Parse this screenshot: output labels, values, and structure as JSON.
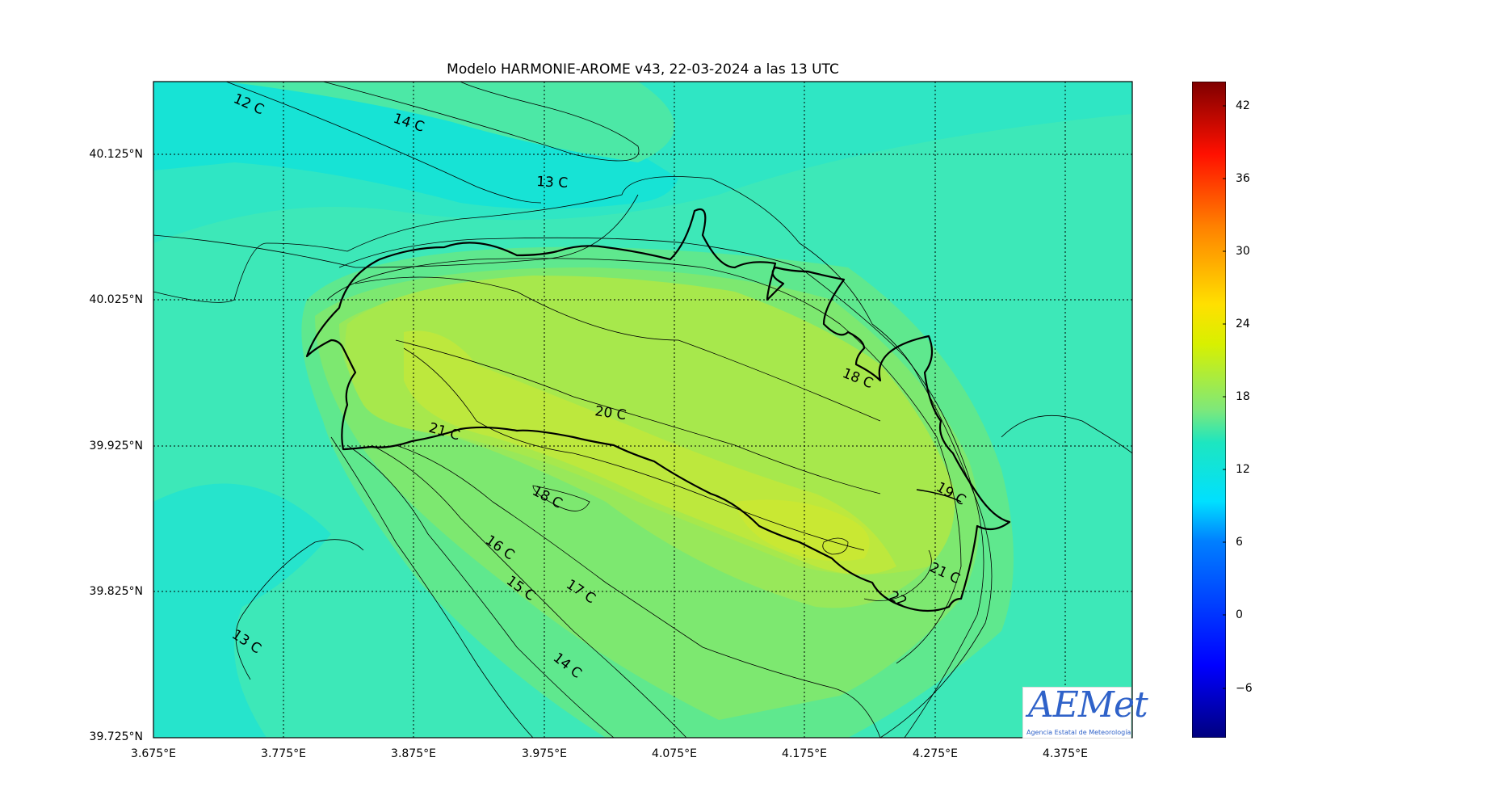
{
  "title": "Modelo HARMONIE-AROME v43, 22-03-2024 a las 13 UTC",
  "lat_ticks": [
    "40.125°N",
    "40.025°N",
    "39.925°N",
    "39.825°N",
    "39.725°N"
  ],
  "lon_ticks": [
    "3.675°E",
    "3.775°E",
    "3.875°E",
    "3.975°E",
    "4.075°E",
    "4.175°E",
    "4.275°E",
    "4.375°E"
  ],
  "colorbar": {
    "ticks": [
      "42",
      "36",
      "30",
      "24",
      "18",
      "12",
      "6",
      "0",
      "−6"
    ],
    "range": [
      -9,
      45
    ],
    "colormap": "jet"
  },
  "contour_labels": [
    "12 C",
    "14 C",
    "13 C",
    "18 C",
    "20 C",
    "21 C",
    "18 C",
    "19 C",
    "16 C",
    "15 C",
    "17 C",
    "21 C",
    "22",
    "13 C",
    "14 C"
  ],
  "logo": {
    "text": "AEMet",
    "subtitle": "Agencia Estatal de Meteorología"
  },
  "colors": {
    "sea_cold": "#17e3d5",
    "sea": "#3de8b8",
    "land_warm": "#8ce85a",
    "land_hot": "#c6e835",
    "coast": "#000000"
  }
}
